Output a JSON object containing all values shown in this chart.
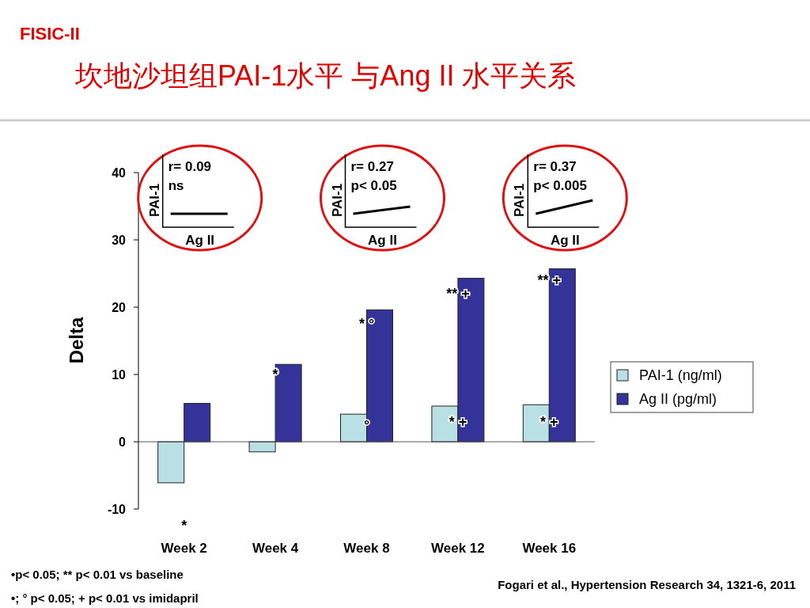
{
  "chart_data": {
    "type": "bar",
    "title": "坎地沙坦组PAI-1水平 与Ang II 水平关系",
    "subtitle": "FISIC-II",
    "ylabel": "Delta",
    "categories": [
      "Week 2",
      "Week 4",
      "Week 8",
      "Week 12",
      "Week 16"
    ],
    "series": [
      {
        "name": "PAI-1 (ng/ml)",
        "color": "#b9e1e5",
        "values": [
          -6.1,
          -1.5,
          4.1,
          5.3,
          5.5
        ]
      },
      {
        "name": "Ag II  (pg/ml)",
        "color": "#333399",
        "values": [
          5.7,
          11.5,
          19.6,
          24.3,
          25.7
        ]
      }
    ],
    "ylim": [
      -10,
      40
    ],
    "yticks": [
      -10,
      0,
      10,
      20,
      30,
      40
    ],
    "legend": "right",
    "annotations": [
      "r= 0.09",
      "ns",
      "PAI-1",
      "Ag II",
      "r= 0.27",
      "p< 0.05",
      "PAI-1",
      "Ag II",
      "r= 0.37",
      "p< 0.005",
      "PAI-1",
      "Ag II",
      {
        "text": "*",
        "x": "Week 2",
        "y": -6.1
      },
      {
        "text": "*",
        "x": "Week 4",
        "y": 10
      },
      {
        "text": "* °",
        "x": "Week 8",
        "y": 17.5
      },
      {
        "text": "°",
        "x": "Week 8",
        "y": 2.5
      },
      {
        "text": "** +",
        "x": "Week 12",
        "y": 22
      },
      {
        "text": "* +",
        "x": "Week 12",
        "y": 3
      },
      {
        "text": "** +",
        "x": "Week 16",
        "y": 24
      },
      {
        "text": "* +",
        "x": "Week 16",
        "y": 3
      },
      "•p< 0.05; ** p< 0.01 vs baseline",
      "•; °  p< 0.05; + p< 0.01 vs imidapril",
      "Fogari et al., Hypertension Research 34, 1321-6, 2011"
    ]
  }
}
